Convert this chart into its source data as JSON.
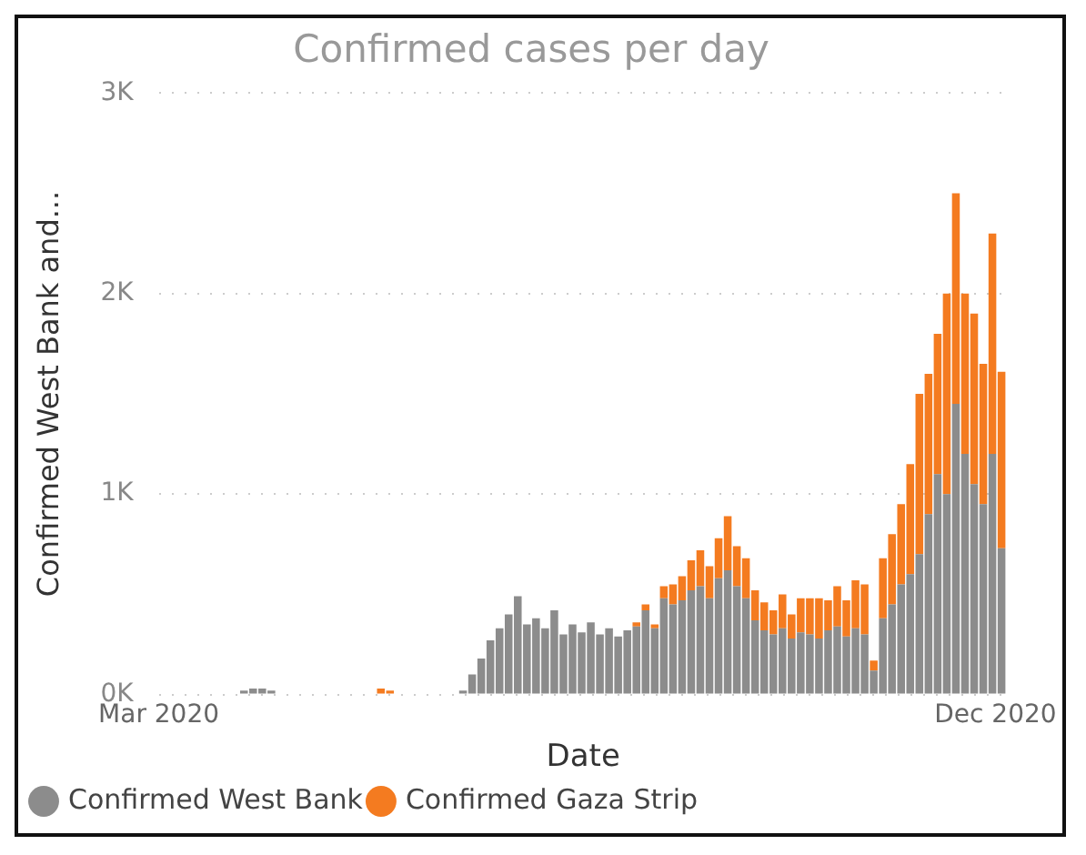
{
  "chart_data": {
    "type": "bar",
    "title": "Confirmed cases per day",
    "xlabel": "Date",
    "ylabel": "Confirmed West Bank and...",
    "x": [
      "2020-03-05",
      "2020-03-08",
      "2020-03-11",
      "2020-03-14",
      "2020-03-17",
      "2020-03-20",
      "2020-03-23",
      "2020-03-26",
      "2020-03-29",
      "2020-04-01",
      "2020-04-04",
      "2020-04-07",
      "2020-04-10",
      "2020-04-13",
      "2020-04-16",
      "2020-04-19",
      "2020-04-22",
      "2020-04-25",
      "2020-04-28",
      "2020-05-01",
      "2020-05-04",
      "2020-05-07",
      "2020-05-10",
      "2020-05-13",
      "2020-05-16",
      "2020-05-19",
      "2020-05-22",
      "2020-05-25",
      "2020-05-28",
      "2020-05-31",
      "2020-06-03",
      "2020-06-06",
      "2020-06-09",
      "2020-06-12",
      "2020-06-15",
      "2020-06-18",
      "2020-06-21",
      "2020-06-24",
      "2020-06-27",
      "2020-06-30",
      "2020-07-03",
      "2020-07-06",
      "2020-07-09",
      "2020-07-12",
      "2020-07-15",
      "2020-07-18",
      "2020-07-21",
      "2020-07-24",
      "2020-07-27",
      "2020-07-30",
      "2020-08-02",
      "2020-08-05",
      "2020-08-08",
      "2020-08-11",
      "2020-08-14",
      "2020-08-17",
      "2020-08-20",
      "2020-08-23",
      "2020-08-26",
      "2020-08-29",
      "2020-09-01",
      "2020-09-04",
      "2020-09-07",
      "2020-09-10",
      "2020-09-13",
      "2020-09-16",
      "2020-09-19",
      "2020-09-22",
      "2020-09-25",
      "2020-09-28",
      "2020-10-01",
      "2020-10-04",
      "2020-10-07",
      "2020-10-10",
      "2020-10-13",
      "2020-10-16",
      "2020-10-19",
      "2020-10-22",
      "2020-10-25",
      "2020-10-28",
      "2020-10-31",
      "2020-11-03",
      "2020-11-06",
      "2020-11-09",
      "2020-11-12",
      "2020-11-15",
      "2020-11-18",
      "2020-11-21",
      "2020-11-24",
      "2020-11-27",
      "2020-11-30",
      "2020-12-03"
    ],
    "series": [
      {
        "name": "Confirmed West Bank",
        "color": "#8c8c8c",
        "values": [
          0,
          0,
          0,
          0,
          0,
          0,
          0,
          0,
          20,
          30,
          30,
          20,
          0,
          0,
          0,
          0,
          0,
          0,
          0,
          0,
          0,
          0,
          0,
          0,
          0,
          0,
          0,
          0,
          0,
          0,
          0,
          0,
          20,
          100,
          180,
          270,
          330,
          400,
          490,
          350,
          380,
          330,
          420,
          300,
          350,
          310,
          360,
          300,
          330,
          290,
          320,
          340,
          420,
          330,
          480,
          450,
          470,
          520,
          540,
          480,
          580,
          620,
          540,
          480,
          370,
          320,
          300,
          330,
          280,
          310,
          300,
          280,
          320,
          340,
          290,
          330,
          300,
          120,
          380,
          450,
          550,
          600,
          700,
          900,
          1100,
          1000,
          1450,
          1200,
          1050,
          950,
          1200,
          730
        ]
      },
      {
        "name": "Confirmed Gaza Strip",
        "color": "#f47b20",
        "values": [
          0,
          0,
          0,
          0,
          0,
          0,
          0,
          0,
          0,
          0,
          0,
          0,
          0,
          0,
          0,
          0,
          0,
          0,
          0,
          0,
          0,
          0,
          0,
          30,
          20,
          0,
          0,
          0,
          0,
          0,
          0,
          0,
          0,
          0,
          0,
          0,
          0,
          0,
          0,
          0,
          0,
          0,
          0,
          0,
          0,
          0,
          0,
          0,
          0,
          0,
          0,
          20,
          30,
          20,
          60,
          100,
          120,
          150,
          180,
          160,
          200,
          270,
          200,
          200,
          150,
          140,
          120,
          170,
          120,
          170,
          180,
          200,
          150,
          200,
          180,
          240,
          250,
          50,
          300,
          350,
          400,
          550,
          800,
          700,
          700,
          1000,
          1050,
          800,
          850,
          700,
          1100,
          880
        ]
      }
    ],
    "stacked": true,
    "xlim": [
      "2020-03-01",
      "2020-12-05"
    ],
    "xticks": [
      {
        "value": "2020-03-01",
        "label": "Mar 2020"
      },
      {
        "value": "2020-12-01",
        "label": "Dec 2020"
      }
    ],
    "ylim": [
      0,
      3000
    ],
    "yticks": [
      {
        "value": 0,
        "label": "0K"
      },
      {
        "value": 1000,
        "label": "1K"
      },
      {
        "value": 2000,
        "label": "2K"
      },
      {
        "value": 3000,
        "label": "3K"
      }
    ],
    "grid": "y",
    "legend": "bottom"
  }
}
